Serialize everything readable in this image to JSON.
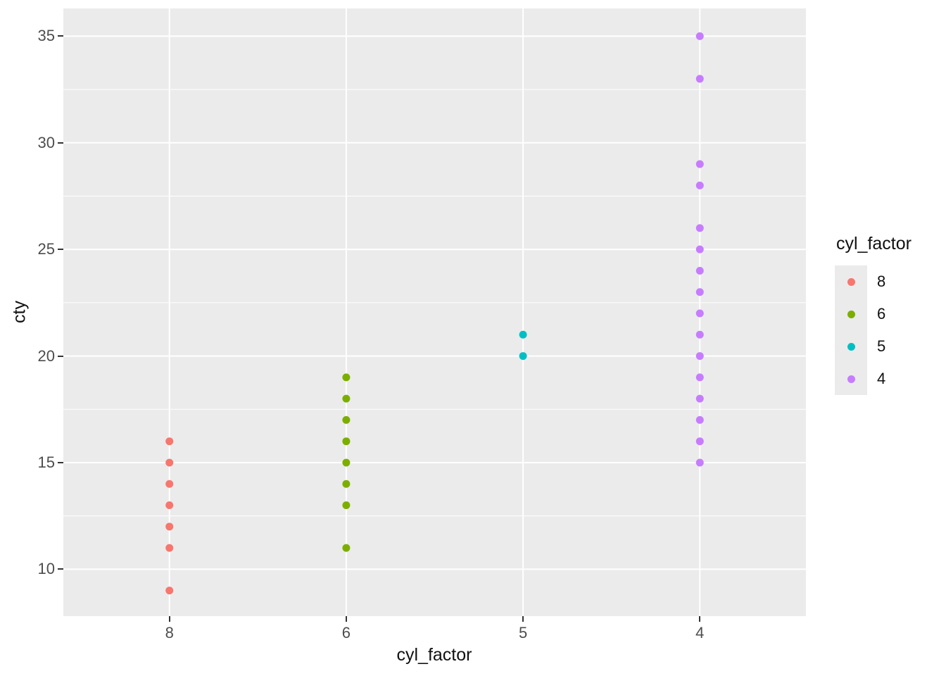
{
  "chart_data": {
    "type": "scatter",
    "title": "",
    "xlabel": "cyl_factor",
    "ylabel": "cty",
    "x_categories": [
      "8",
      "6",
      "5",
      "4"
    ],
    "y_ticks": [
      10,
      15,
      20,
      25,
      30,
      35
    ],
    "y_minor_ticks": [
      12.5,
      17.5,
      22.5,
      27.5,
      32.5
    ],
    "ylim": [
      7.8,
      36.3
    ],
    "grid": "on",
    "panel_bg": "#EBEBEB",
    "grid_major_color": "#FFFFFF",
    "grid_minor_color": "#FFFFFF",
    "legend": {
      "title": "cyl_factor",
      "position": "right",
      "entries": [
        {
          "label": "8",
          "color": "#F8766D"
        },
        {
          "label": "6",
          "color": "#7CAE00"
        },
        {
          "label": "5",
          "color": "#00BFC4"
        },
        {
          "label": "4",
          "color": "#C77CFF"
        }
      ]
    },
    "series": [
      {
        "name": "8",
        "category": "8",
        "color": "#F8766D",
        "cty_values": [
          9,
          11,
          12,
          13,
          14,
          15,
          16
        ]
      },
      {
        "name": "6",
        "category": "6",
        "color": "#7CAE00",
        "cty_values": [
          11,
          13,
          14,
          15,
          16,
          17,
          18,
          19
        ]
      },
      {
        "name": "5",
        "category": "5",
        "color": "#00BFC4",
        "cty_values": [
          20,
          21
        ]
      },
      {
        "name": "4",
        "category": "4",
        "color": "#C77CFF",
        "cty_values": [
          15,
          16,
          17,
          18,
          19,
          20,
          21,
          22,
          23,
          24,
          25,
          26,
          28,
          29,
          33,
          35
        ]
      }
    ]
  }
}
